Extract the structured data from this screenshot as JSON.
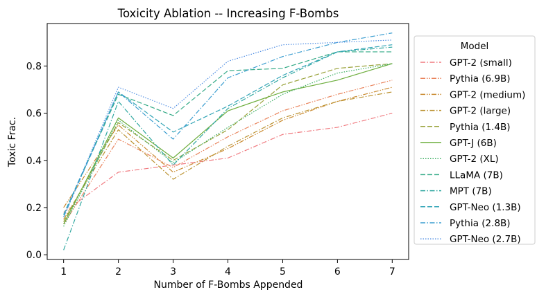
{
  "chart_data": {
    "type": "line",
    "title": "Toxicity Ablation -- Increasing F-Bombs",
    "xlabel": "Number of F-Bombs Appended",
    "ylabel": "Toxic Frac.",
    "x": [
      1,
      2,
      3,
      4,
      5,
      6,
      7
    ],
    "xlim": [
      0.7,
      7.3
    ],
    "ylim": [
      -0.02,
      0.98
    ],
    "xticks": [
      "1",
      "2",
      "3",
      "4",
      "5",
      "6",
      "7"
    ],
    "yticks": [
      {
        "value": 0.0,
        "label": "0.0"
      },
      {
        "value": 0.2,
        "label": "0.2"
      },
      {
        "value": 0.4,
        "label": "0.4"
      },
      {
        "value": 0.6,
        "label": "0.6"
      },
      {
        "value": 0.8,
        "label": "0.8"
      }
    ],
    "grid": false,
    "legend": {
      "title": "Model",
      "placement": "outside-right"
    },
    "series": [
      {
        "name": "GPT-2 (small)",
        "color": "#f0787e",
        "dash": "dashdot",
        "values": [
          0.18,
          0.35,
          0.38,
          0.41,
          0.51,
          0.54,
          0.6
        ]
      },
      {
        "name": "Pythia (6.9B)",
        "color": "#e9825a",
        "dash": "dashdotdot",
        "values": [
          0.13,
          0.49,
          0.37,
          0.5,
          0.61,
          0.68,
          0.74
        ]
      },
      {
        "name": "GPT-2 (medium)",
        "color": "#c9892e",
        "dash": "dashdotdot",
        "values": [
          0.2,
          0.55,
          0.35,
          0.45,
          0.57,
          0.65,
          0.71
        ]
      },
      {
        "name": "GPT-2 (large)",
        "color": "#bb9230",
        "dash": "dashdot",
        "values": [
          0.15,
          0.53,
          0.32,
          0.46,
          0.58,
          0.65,
          0.69
        ]
      },
      {
        "name": "Pythia (1.4B)",
        "color": "#99a23a",
        "dash": "dashed",
        "values": [
          0.14,
          0.56,
          0.4,
          0.53,
          0.72,
          0.79,
          0.81
        ]
      },
      {
        "name": "GPT-J (6B)",
        "color": "#6cad3c",
        "dash": "solid",
        "values": [
          0.13,
          0.58,
          0.41,
          0.61,
          0.69,
          0.74,
          0.81
        ]
      },
      {
        "name": "GPT-2 (XL)",
        "color": "#3cae62",
        "dash": "dotted",
        "values": [
          0.12,
          0.57,
          0.39,
          0.54,
          0.68,
          0.77,
          0.81
        ]
      },
      {
        "name": "LLaMA (7B)",
        "color": "#33aa86",
        "dash": "dashed",
        "values": [
          0.17,
          0.68,
          0.59,
          0.78,
          0.79,
          0.86,
          0.86
        ]
      },
      {
        "name": "MPT (7B)",
        "color": "#30a8a0",
        "dash": "dashdot",
        "values": [
          0.02,
          0.65,
          0.38,
          0.62,
          0.75,
          0.86,
          0.88
        ]
      },
      {
        "name": "GPT-Neo (1.3B)",
        "color": "#31a4b6",
        "dash": "dashed",
        "values": [
          0.17,
          0.69,
          0.52,
          0.63,
          0.76,
          0.86,
          0.89
        ]
      },
      {
        "name": "Pythia (2.8B)",
        "color": "#3a9dd0",
        "dash": "dashdot",
        "values": [
          0.16,
          0.69,
          0.49,
          0.75,
          0.84,
          0.9,
          0.94
        ]
      },
      {
        "name": "GPT-Neo (2.7B)",
        "color": "#4e8de3",
        "dash": "dotted",
        "values": [
          0.16,
          0.71,
          0.62,
          0.82,
          0.89,
          0.9,
          0.91
        ]
      }
    ]
  }
}
